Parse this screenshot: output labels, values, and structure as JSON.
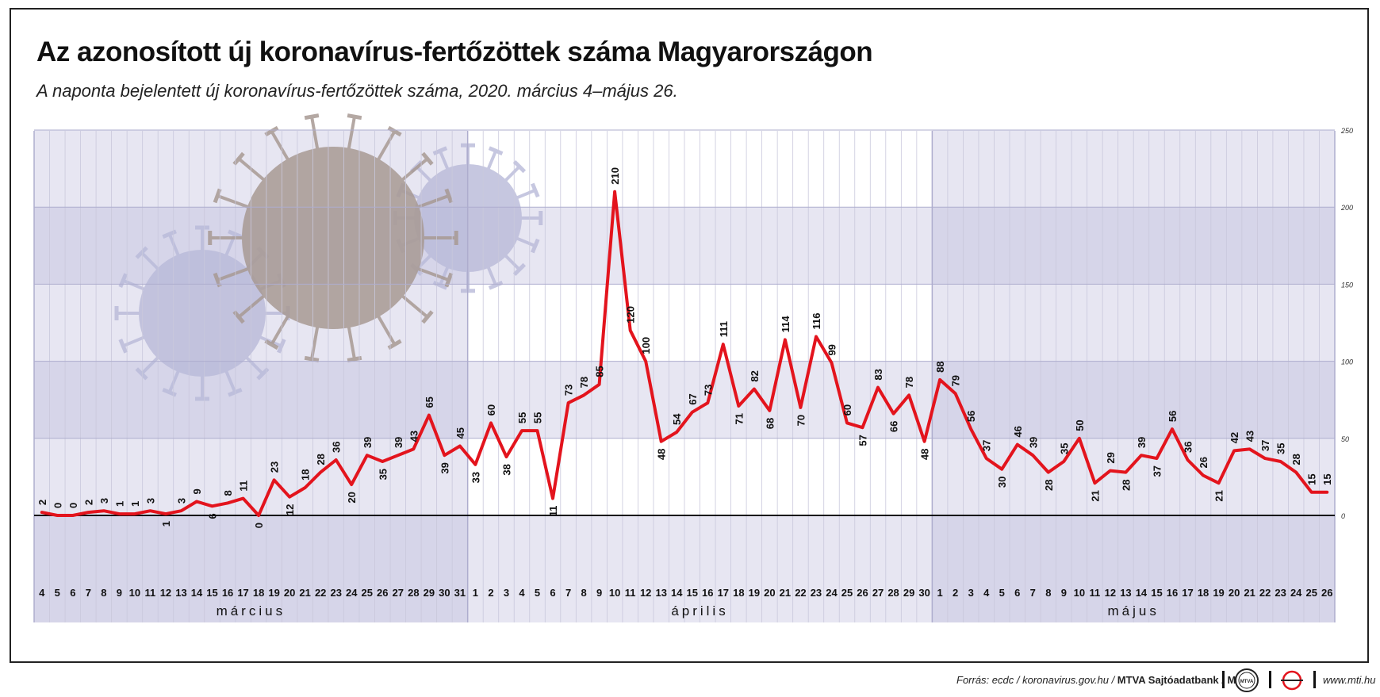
{
  "header": {
    "title": "Az azonosított új koronavírus-fertőzöttek száma Magyarországon",
    "subtitle": "A naponta bejelentett új koronavírus-fertőzöttek száma, 2020. március 4–május 26."
  },
  "footer": {
    "source_prefix": "Forrás: ecdc / koronavirus.gov.hu / ",
    "source_bold": "MTVA Sajtóadatbank / MTI",
    "logo_mtva": "MTVA",
    "website": "www.mti.hu"
  },
  "colors": {
    "line": "#e3141d",
    "band_light": "#e7e6f2",
    "band_dark": "#d6d5e9",
    "background": "#ffffff",
    "grid_minor": "#c9c8dc",
    "grid_major": "#aeadce",
    "baseline": "#111111",
    "virus_brown": "#a89a94",
    "virus_blue": "#b9bad9"
  },
  "icons": {
    "decoration": "coronavirus-icon",
    "logo": "mtva-logo-icon"
  },
  "chart_data": {
    "type": "line",
    "title": "Az azonosított új koronavírus-fertőzöttek száma Magyarországon",
    "xlabel": "",
    "ylabel": "",
    "ylim": [
      -50,
      250
    ],
    "yticks": [
      0,
      50,
      100,
      150,
      200,
      250
    ],
    "grid": true,
    "months": [
      {
        "label": "március",
        "days": [
          "4",
          "5",
          "6",
          "7",
          "8",
          "9",
          "10",
          "11",
          "12",
          "13",
          "14",
          "15",
          "16",
          "17",
          "18",
          "19",
          "20",
          "21",
          "22",
          "23",
          "24",
          "25",
          "26",
          "27",
          "28",
          "29",
          "30",
          "31"
        ]
      },
      {
        "label": "április",
        "days": [
          "1",
          "2",
          "3",
          "4",
          "5",
          "6",
          "7",
          "8",
          "9",
          "10",
          "11",
          "12",
          "13",
          "14",
          "15",
          "16",
          "17",
          "18",
          "19",
          "20",
          "21",
          "22",
          "23",
          "24",
          "25",
          "26",
          "27",
          "28",
          "29",
          "30"
        ]
      },
      {
        "label": "május",
        "days": [
          "1",
          "2",
          "3",
          "4",
          "5",
          "6",
          "7",
          "8",
          "9",
          "10",
          "11",
          "12",
          "13",
          "14",
          "15",
          "16",
          "17",
          "18",
          "19",
          "20",
          "21",
          "22",
          "23",
          "24",
          "25",
          "26"
        ]
      }
    ],
    "values": [
      2,
      0,
      0,
      2,
      3,
      1,
      1,
      3,
      1,
      3,
      9,
      6,
      8,
      11,
      0,
      23,
      12,
      18,
      28,
      36,
      20,
      39,
      35,
      39,
      43,
      65,
      39,
      45,
      33,
      60,
      38,
      55,
      55,
      11,
      73,
      78,
      85,
      210,
      120,
      100,
      48,
      54,
      67,
      73,
      111,
      71,
      82,
      68,
      114,
      70,
      116,
      99,
      60,
      57,
      83,
      66,
      78,
      48,
      88,
      79,
      56,
      37,
      30,
      46,
      39,
      28,
      35,
      50,
      21,
      29,
      28,
      39,
      37,
      56,
      36,
      26,
      21,
      42,
      43,
      37,
      35,
      28,
      15,
      15
    ]
  }
}
